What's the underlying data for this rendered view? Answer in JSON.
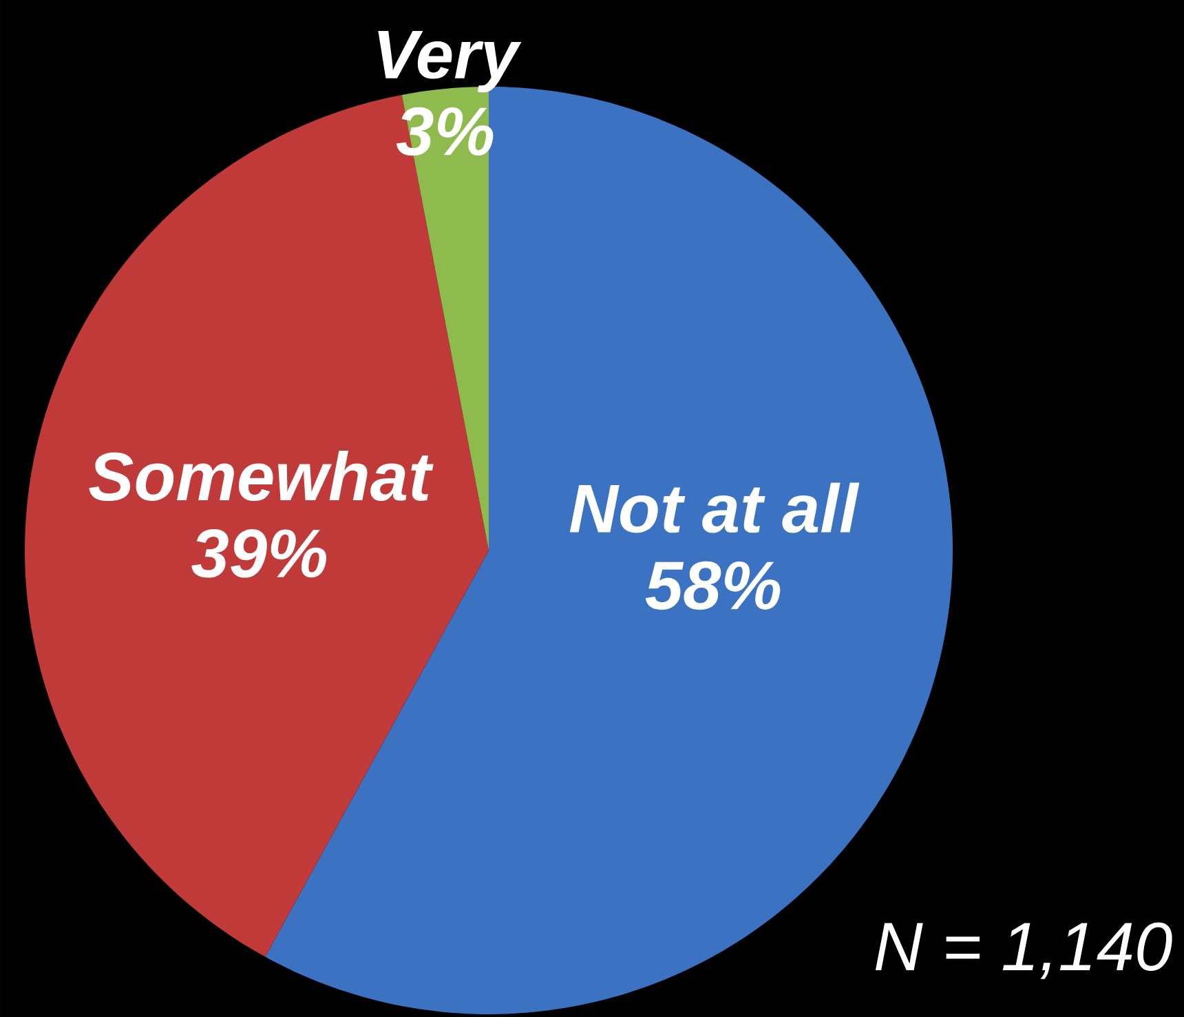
{
  "chart_data": {
    "type": "pie",
    "categories": [
      "Not at all",
      "Somewhat",
      "Very"
    ],
    "values": [
      58,
      39,
      3
    ],
    "value_labels": [
      "58%",
      "39%",
      "3%"
    ],
    "colors": [
      "#3b72c2",
      "#c03a39",
      "#8fba4e"
    ],
    "annotations": [
      "N = 1,140"
    ]
  }
}
